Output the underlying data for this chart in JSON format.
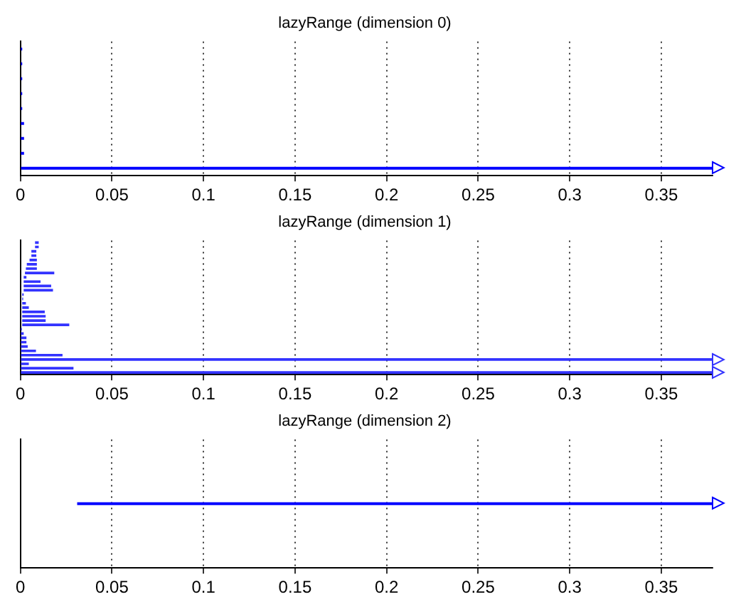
{
  "chart_data": [
    {
      "type": "bar",
      "title": "lazyRange (dimension 0)",
      "orientation": "horizontal",
      "categories": [
        null,
        null,
        null,
        null,
        null,
        null,
        null,
        null,
        null
      ],
      "base": [
        0,
        0,
        0,
        0,
        0,
        0,
        0,
        0,
        0
      ],
      "values": [
        0.001,
        0.001,
        0.001,
        0.001,
        0.001,
        0.002,
        0.002,
        0.002,
        0.378
      ],
      "color": "#0000ff",
      "xlim": [
        0,
        0.378
      ],
      "xticks": [
        0,
        0.05,
        0.1,
        0.15,
        0.2,
        0.25,
        0.3,
        0.35
      ],
      "grid": "x",
      "tick_labels": "x"
    },
    {
      "type": "bar",
      "title": "lazyRange (dimension 1)",
      "orientation": "horizontal",
      "categories": [
        null,
        null,
        null,
        null,
        null,
        null,
        null,
        null,
        null,
        null,
        null,
        null,
        null,
        null,
        null,
        null,
        null,
        null,
        null,
        null,
        null,
        null,
        null,
        null,
        null,
        null,
        null,
        null,
        null,
        null,
        null
      ],
      "base": [
        0.008,
        0.008,
        0.006,
        0.006,
        0.005,
        0.0035,
        0.003,
        0.0025,
        0.0018,
        0.0018,
        0.0018,
        0.0018,
        0.001,
        0.001,
        0.001,
        0.001,
        0.001,
        0.001,
        0.001,
        0.001,
        0,
        0,
        0,
        0,
        0,
        0,
        0,
        0,
        0,
        0,
        0
      ],
      "values": [
        0.002,
        0.002,
        0.0027,
        0.0027,
        0.004,
        0.0055,
        0.006,
        0.016,
        0.0015,
        0.0092,
        0.015,
        0.016,
        0.0008,
        0.0005,
        0.002,
        0.0036,
        0.0123,
        0.0128,
        0.0128,
        0.0257,
        0.0008,
        0.0018,
        0.0033,
        0.0033,
        0.004,
        0.0085,
        0.023,
        0.378,
        0.0046,
        0.029,
        0.378
      ],
      "color": "#3333ff",
      "xlim": [
        0,
        0.378
      ],
      "xticks": [
        0,
        0.05,
        0.1,
        0.15,
        0.2,
        0.25,
        0.3,
        0.35
      ],
      "grid": "x",
      "tick_labels": "x"
    },
    {
      "type": "bar",
      "title": "lazyRange (dimension 2)",
      "orientation": "horizontal",
      "categories": [
        null
      ],
      "base": [
        0.031
      ],
      "values": [
        0.347
      ],
      "color": "#0000ff",
      "xlim": [
        0,
        0.378
      ],
      "xticks": [
        0,
        0.05,
        0.1,
        0.15,
        0.2,
        0.25,
        0.3,
        0.35
      ],
      "grid": "x",
      "tick_labels": "x"
    }
  ]
}
